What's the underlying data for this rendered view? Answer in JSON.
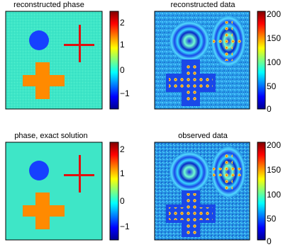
{
  "panels": {
    "top_left": {
      "title": "reconstructed phase"
    },
    "top_right": {
      "title": "reconstructed data"
    },
    "bottom_left": {
      "title": "phase, exact solution"
    },
    "bottom_right": {
      "title": "observed data"
    }
  },
  "colorbars": {
    "phase": {
      "ticks": [
        "2",
        "1",
        "0",
        "−1"
      ],
      "range": [
        -1.5,
        2.2
      ]
    },
    "data": {
      "ticks": [
        "200",
        "150",
        "100",
        "50",
        "0"
      ],
      "range": [
        0,
        200
      ]
    }
  },
  "colors": {
    "phase_background": "#3ee6c7",
    "disk": "#1640ff",
    "cross_red": "#e01010",
    "plus_orange": "#ff8a00",
    "data_background": "#2a9ee8",
    "frame": "#000000"
  }
}
